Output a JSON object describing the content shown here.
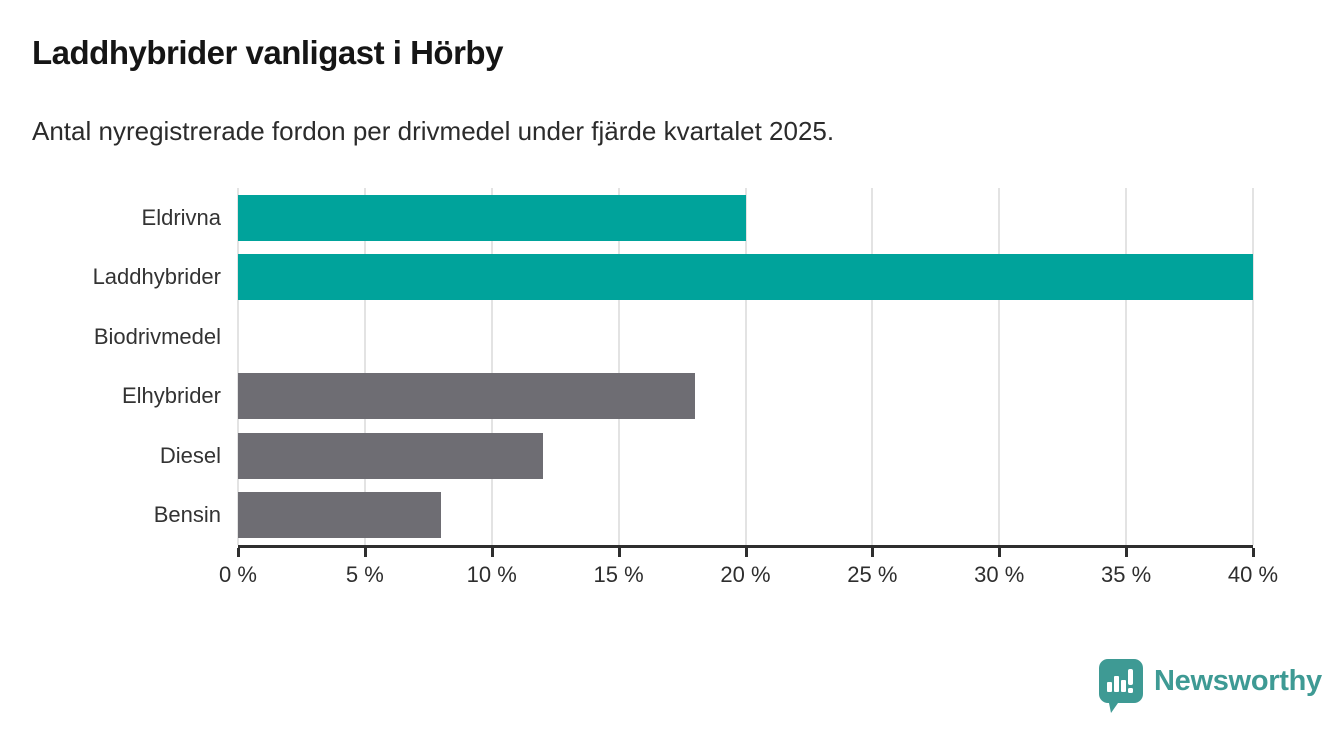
{
  "header": {
    "title": "Laddhybrider vanligast i Hörby",
    "subtitle": "Antal nyregistrerade fordon per drivmedel under fjärde kvartalet 2025."
  },
  "chart_data": {
    "type": "bar",
    "orientation": "horizontal",
    "title": "Laddhybrider vanligast i Hörby",
    "subtitle": "Antal nyregistrerade fordon per drivmedel under fjärde kvartalet 2025.",
    "categories": [
      "Eldrivna",
      "Laddhybrider",
      "Biodrivmedel",
      "Elhybrider",
      "Diesel",
      "Bensin"
    ],
    "values": [
      20,
      40,
      0,
      18,
      12,
      8
    ],
    "unit": "%",
    "xlim": [
      0,
      40
    ],
    "xticks": [
      0,
      5,
      10,
      15,
      20,
      25,
      30,
      35,
      40
    ],
    "xtick_labels": [
      "0 %",
      "5 %",
      "10 %",
      "15 %",
      "20 %",
      "25 %",
      "30 %",
      "35 %",
      "40 %"
    ],
    "bar_colors": [
      "#00a39b",
      "#00a39b",
      "#6e6d73",
      "#6e6d73",
      "#6e6d73",
      "#6e6d73"
    ],
    "highlight_color": "#00a39b",
    "default_color": "#6e6d73",
    "gridline_color": "#e3e3e3",
    "axis_color": "#2e2e2e",
    "grid": true,
    "legend": false
  },
  "footer": {
    "brand": "Newsworthy",
    "brand_color": "#3e9a94",
    "logo_icon": "newsworthy-chart-bubble-icon"
  }
}
